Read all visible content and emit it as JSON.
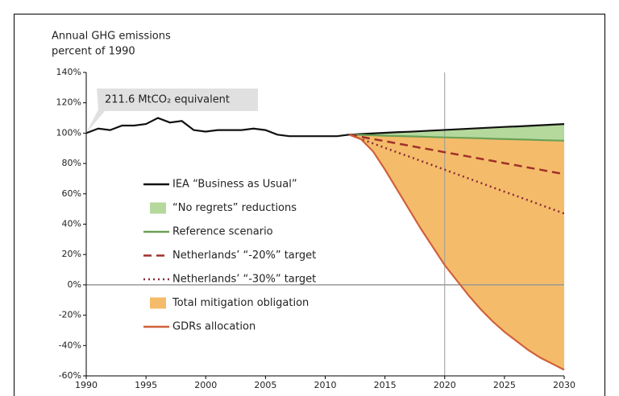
{
  "chart_data": {
    "type": "line",
    "ylabel_lines": [
      "Annual GHG emissions",
      "percent of 1990"
    ],
    "annotation": "211.6 MtCO₂ equivalent",
    "x": [
      1990,
      1991,
      1992,
      1993,
      1994,
      1995,
      1996,
      1997,
      1998,
      1999,
      2000,
      2001,
      2002,
      2003,
      2004,
      2005,
      2006,
      2007,
      2008,
      2009,
      2010,
      2011,
      2012,
      2013,
      2014,
      2015,
      2016,
      2017,
      2018,
      2019,
      2020,
      2021,
      2022,
      2023,
      2024,
      2025,
      2026,
      2027,
      2028,
      2029,
      2030
    ],
    "xlim": [
      1990,
      2030
    ],
    "xticks": [
      1990,
      1995,
      2000,
      2005,
      2010,
      2015,
      2020,
      2025,
      2030
    ],
    "ylim": [
      -60,
      140
    ],
    "yticks": [
      {
        "value": -60,
        "label": "-60%"
      },
      {
        "value": -40,
        "label": "-40%"
      },
      {
        "value": -20,
        "label": "-20%"
      },
      {
        "value": 0,
        "label": "0%"
      },
      {
        "value": 20,
        "label": "20%"
      },
      {
        "value": 40,
        "label": "40%"
      },
      {
        "value": 60,
        "label": "60%"
      },
      {
        "value": 80,
        "label": "80%"
      },
      {
        "value": 100,
        "label": "100%"
      },
      {
        "value": 120,
        "label": "120%"
      },
      {
        "value": 140,
        "label": "140%"
      }
    ],
    "series": [
      {
        "name": "IEA “Business as Usual”",
        "color": "#111111",
        "style": "solid",
        "values": [
          100,
          103,
          102,
          105,
          105,
          106,
          110,
          107,
          108,
          102,
          101,
          102,
          102,
          102,
          103,
          102,
          99,
          98,
          98,
          98,
          98,
          98,
          99,
          99.4,
          99.8,
          100.2,
          100.6,
          100.9,
          101.3,
          101.7,
          102.1,
          102.5,
          102.9,
          103.3,
          103.7,
          104.1,
          104.4,
          104.8,
          105.2,
          105.6,
          106
        ]
      },
      {
        "name": "“No regrets” reductions",
        "color": "#b5d99c",
        "style": "fill",
        "fill_between": [
          0,
          2
        ]
      },
      {
        "name": "Reference scenario",
        "color": "#6aa058",
        "style": "solid",
        "values": [
          null,
          null,
          null,
          null,
          null,
          null,
          null,
          null,
          null,
          null,
          null,
          null,
          null,
          null,
          null,
          null,
          null,
          null,
          null,
          null,
          null,
          null,
          99,
          98.8,
          98.6,
          98.3,
          98.1,
          97.9,
          97.7,
          97.4,
          97.2,
          97,
          96.8,
          96.6,
          96.3,
          96.1,
          95.9,
          95.7,
          95.4,
          95.2,
          95
        ]
      },
      {
        "name": "Netherlands’ “-20%” target",
        "color": "#a0302a",
        "style": "dashed",
        "values": [
          null,
          null,
          null,
          null,
          null,
          null,
          null,
          null,
          null,
          null,
          null,
          null,
          null,
          null,
          null,
          null,
          null,
          null,
          null,
          null,
          null,
          null,
          99,
          97.6,
          96.1,
          94.7,
          93.2,
          91.8,
          90.3,
          88.9,
          87.4,
          86,
          84.6,
          83.1,
          81.7,
          80.2,
          78.8,
          77.3,
          75.9,
          74.4,
          73
        ]
      },
      {
        "name": "Netherlands’ “-30%” target",
        "color": "#8a2a3a",
        "style": "dotted",
        "values": [
          null,
          null,
          null,
          null,
          null,
          null,
          null,
          null,
          null,
          null,
          null,
          null,
          null,
          null,
          null,
          null,
          null,
          null,
          null,
          null,
          null,
          null,
          99,
          96.1,
          93.2,
          90.3,
          87.4,
          84.6,
          81.7,
          78.8,
          75.9,
          73,
          70.1,
          67.2,
          64.3,
          61.4,
          58.6,
          55.7,
          52.8,
          49.9,
          47
        ]
      },
      {
        "name": "Total mitigation obligation",
        "color": "#f4bc6a",
        "style": "fill",
        "fill_between": [
          2,
          6
        ]
      },
      {
        "name": "GDRs allocation",
        "color": "#d0603a",
        "style": "solid",
        "values": [
          null,
          null,
          null,
          null,
          null,
          null,
          null,
          null,
          null,
          null,
          null,
          null,
          null,
          null,
          null,
          null,
          null,
          null,
          null,
          null,
          null,
          null,
          99,
          96,
          88,
          76,
          63,
          50,
          37,
          25,
          13,
          3,
          -7,
          -16,
          -24,
          -31,
          -37,
          -43,
          -48,
          -52,
          -56
        ]
      }
    ],
    "ref_lines": {
      "x": 2020,
      "y": 0,
      "color": "#999999"
    }
  }
}
